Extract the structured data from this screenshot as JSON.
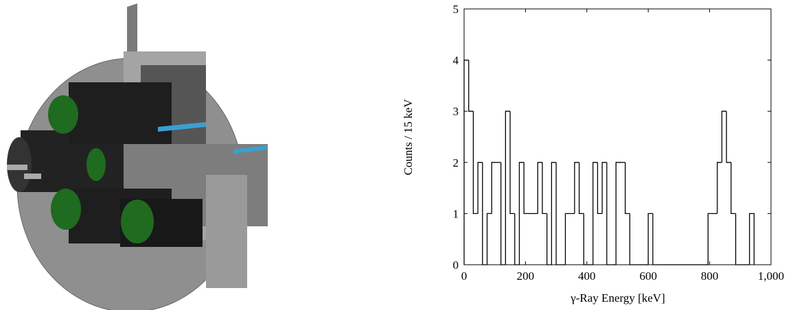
{
  "chart_data": {
    "type": "histogram",
    "x_label": "γ-Ray Energy [keV]",
    "y_label": "Counts / 15 keV",
    "bins": [
      0,
      15,
      30,
      45,
      60,
      75,
      90,
      105,
      120,
      135,
      150,
      165,
      180,
      195,
      210,
      225,
      240,
      255,
      270,
      285,
      300,
      315,
      330,
      345,
      360,
      375,
      390,
      405,
      420,
      435,
      450,
      465,
      480,
      495,
      510,
      525,
      540,
      555,
      570,
      585,
      600,
      615,
      630,
      645,
      660,
      675,
      690,
      705,
      720,
      735,
      750,
      765,
      780,
      795,
      810,
      825,
      840,
      855,
      870,
      885,
      900,
      915,
      930,
      945
    ],
    "values": [
      4,
      3,
      1,
      2,
      0,
      1,
      2,
      2,
      0,
      3,
      1,
      0,
      2,
      1,
      1,
      1,
      2,
      1,
      0,
      2,
      0,
      0,
      1,
      1,
      2,
      1,
      0,
      0,
      2,
      1,
      2,
      0,
      0,
      2,
      2,
      1,
      0,
      0,
      0,
      0,
      1,
      0,
      0,
      0,
      0,
      0,
      0,
      0,
      0,
      0,
      0,
      0,
      0,
      1,
      1,
      2,
      3,
      2,
      1,
      0,
      0,
      0,
      1
    ],
    "color": "#000000",
    "xlim": [
      0,
      1000
    ],
    "ylim": [
      0,
      5
    ],
    "xticks": [
      0,
      200,
      400,
      600,
      800,
      {
        "value": 1000,
        "label": "1,000"
      }
    ],
    "yticks": [
      0,
      1,
      2,
      3,
      4,
      5
    ]
  }
}
